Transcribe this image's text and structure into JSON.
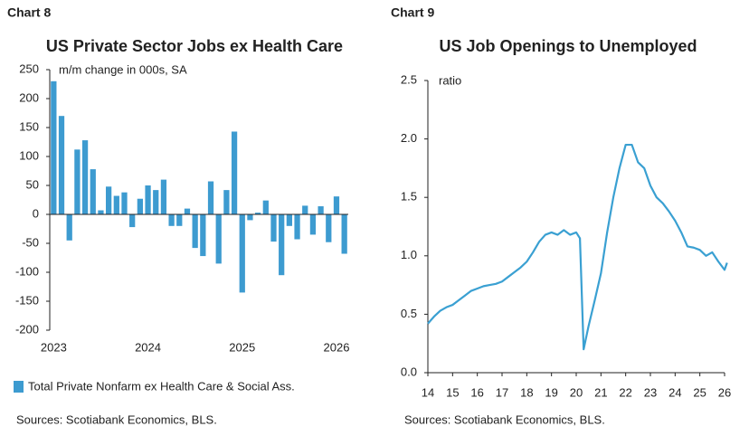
{
  "chart_data": [
    {
      "type": "bar",
      "label": "Chart 8",
      "title": "US Private Sector Jobs ex Health Care",
      "y_label": "m/m change in 000s, SA",
      "categories": [
        "2023",
        null,
        null,
        null,
        null,
        null,
        null,
        null,
        null,
        null,
        null,
        null,
        "2024",
        null,
        null,
        null,
        null,
        null,
        null,
        null,
        null,
        null,
        null,
        null,
        "2025",
        null,
        null,
        null,
        null,
        null,
        null,
        null,
        null,
        null,
        null,
        null,
        "2026",
        null
      ],
      "series": [
        {
          "name": "Total Private Nonfarm ex Health Care & Social Ass.",
          "color": "#3d9bd0",
          "values": [
            230,
            170,
            -45,
            112,
            128,
            78,
            7,
            48,
            32,
            38,
            -22,
            27,
            50,
            42,
            60,
            -20,
            -20,
            10,
            -58,
            -72,
            57,
            -85,
            42,
            143,
            -135,
            -10,
            3,
            24,
            -47,
            -105,
            -20,
            -43,
            15,
            -35,
            14,
            -48,
            31,
            -68
          ]
        }
      ],
      "ylim": [
        -200,
        250
      ],
      "yticks": [
        -200,
        -150,
        -100,
        -50,
        0,
        50,
        100,
        150,
        200,
        250
      ],
      "sources": "Sources: Scotiabank Economics,  BLS."
    },
    {
      "type": "line",
      "label": "Chart 9",
      "title": "US Job Openings to Unemployed",
      "y_label": "ratio",
      "x": [
        14.0,
        14.25,
        14.5,
        14.75,
        15.0,
        15.25,
        15.5,
        15.75,
        16.0,
        16.25,
        16.5,
        16.75,
        17.0,
        17.25,
        17.5,
        17.75,
        18.0,
        18.25,
        18.5,
        18.75,
        19.0,
        19.25,
        19.5,
        19.75,
        20.0,
        20.15,
        20.3,
        20.5,
        20.75,
        21.0,
        21.25,
        21.5,
        21.75,
        22.0,
        22.25,
        22.5,
        22.75,
        23.0,
        23.25,
        23.5,
        23.75,
        24.0,
        24.25,
        24.5,
        24.75,
        25.0,
        25.25,
        25.5,
        25.75,
        26.0,
        26.1
      ],
      "series": [
        {
          "name": "Job openings to unemployed",
          "color": "#3aa0d2",
          "values": [
            0.42,
            0.48,
            0.53,
            0.56,
            0.58,
            0.62,
            0.66,
            0.7,
            0.72,
            0.74,
            0.75,
            0.76,
            0.78,
            0.82,
            0.86,
            0.9,
            0.95,
            1.03,
            1.12,
            1.18,
            1.2,
            1.18,
            1.22,
            1.18,
            1.2,
            1.15,
            0.2,
            0.4,
            0.62,
            0.85,
            1.2,
            1.5,
            1.75,
            1.95,
            1.95,
            1.8,
            1.75,
            1.6,
            1.5,
            1.45,
            1.38,
            1.3,
            1.2,
            1.08,
            1.07,
            1.05,
            1.0,
            1.03,
            0.95,
            0.88,
            0.94
          ]
        }
      ],
      "xlim": [
        14,
        26
      ],
      "xticks": [
        14,
        15,
        16,
        17,
        18,
        19,
        20,
        21,
        22,
        23,
        24,
        25,
        26
      ],
      "ylim": [
        0,
        2.5
      ],
      "yticks": [
        {
          "value": 0,
          "label": "0.0"
        },
        0.5,
        {
          "value": 1,
          "label": "1.0"
        },
        1.5,
        {
          "value": 2,
          "label": "2.0"
        },
        2.5
      ],
      "sources": "Sources: Scotiabank Economics, BLS."
    }
  ]
}
